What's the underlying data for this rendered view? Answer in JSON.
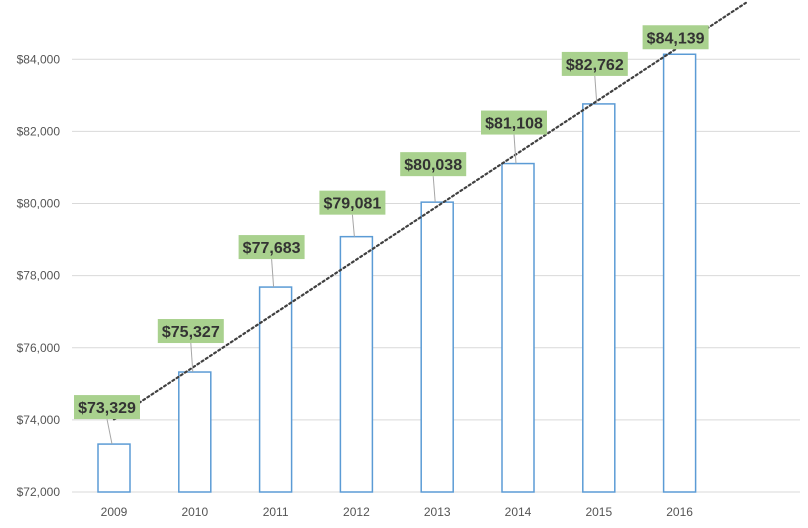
{
  "chart_data": {
    "type": "bar",
    "categories": [
      "2009",
      "2010",
      "2011",
      "2012",
      "2013",
      "2014",
      "2015",
      "2016"
    ],
    "values": [
      73329,
      75327,
      77683,
      79081,
      80038,
      81108,
      82762,
      84139
    ],
    "data_labels": [
      "$73,329",
      "$75,327",
      "$77,683",
      "$79,081",
      "$80,038",
      "$81,108",
      "$82,762",
      "$84,139"
    ],
    "y_ticks": [
      72000,
      74000,
      76000,
      78000,
      80000,
      82000,
      84000
    ],
    "y_tick_labels": [
      "$72,000",
      "$74,000",
      "$76,000",
      "$78,000",
      "$80,000",
      "$82,000",
      "$84,000"
    ],
    "ylim": [
      72000,
      85200
    ],
    "title": "",
    "xlabel": "",
    "ylabel": "",
    "grid": true,
    "legend": "none",
    "trendline": {
      "type": "linear",
      "style": "dotted"
    },
    "colors": {
      "bar_outline": "#5b9bd5",
      "bar_fill": "#ffffff",
      "label_background": "#a9d18e",
      "label_text": "#333333",
      "gridline": "#d9d9d9",
      "trendline": "#404040",
      "axis_text": "#555555"
    }
  }
}
